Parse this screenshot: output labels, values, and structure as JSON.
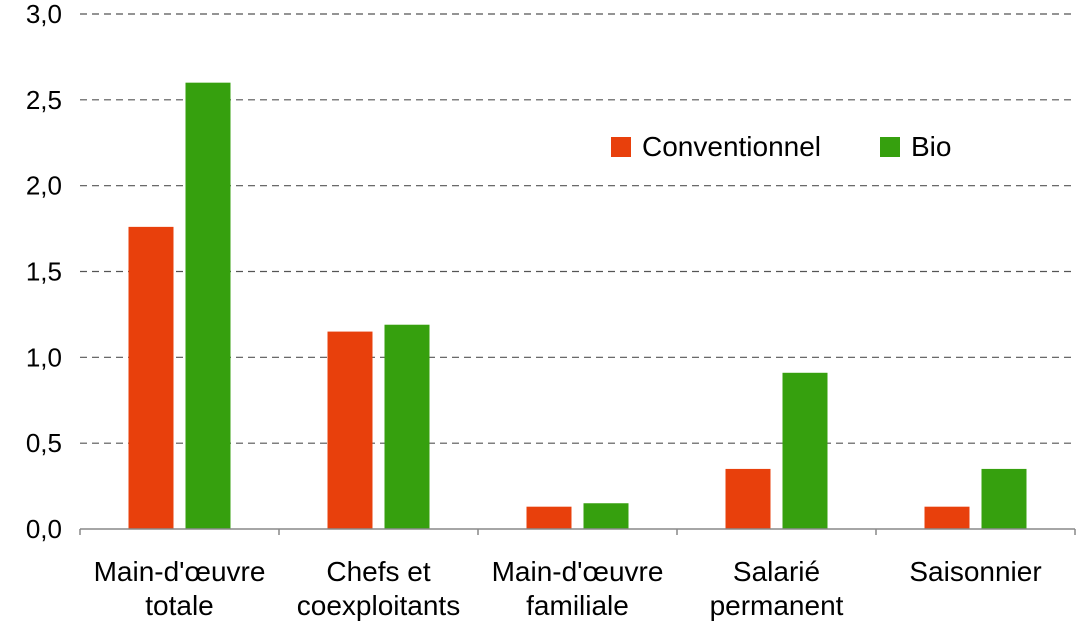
{
  "chart_data": {
    "type": "bar",
    "title": "",
    "xlabel": "",
    "ylabel": "",
    "categories": [
      [
        "Main-d'œuvre",
        "totale"
      ],
      [
        "Chefs et",
        "coexploitants"
      ],
      [
        "Main-d'œuvre",
        "familiale"
      ],
      [
        "Salarié",
        "permanent"
      ],
      [
        "Saisonnier"
      ]
    ],
    "series": [
      {
        "name": "Conventionnel",
        "color": "#E8400C",
        "values": [
          1.76,
          1.15,
          0.13,
          0.35,
          0.13
        ]
      },
      {
        "name": "Bio",
        "color": "#36A00E",
        "values": [
          2.6,
          1.19,
          0.15,
          0.91,
          0.35
        ]
      }
    ],
    "ylim": [
      0,
      3
    ],
    "yticks": [
      0,
      0.5,
      1,
      1.5,
      2,
      2.5,
      3
    ],
    "ytick_labels": [
      "0,0",
      "0,5",
      "1,0",
      "1,5",
      "2,0",
      "2,5",
      "3,0"
    ],
    "grid": "dashed horizontal",
    "legend": {
      "position": "top-right",
      "orientation": "horizontal"
    }
  }
}
